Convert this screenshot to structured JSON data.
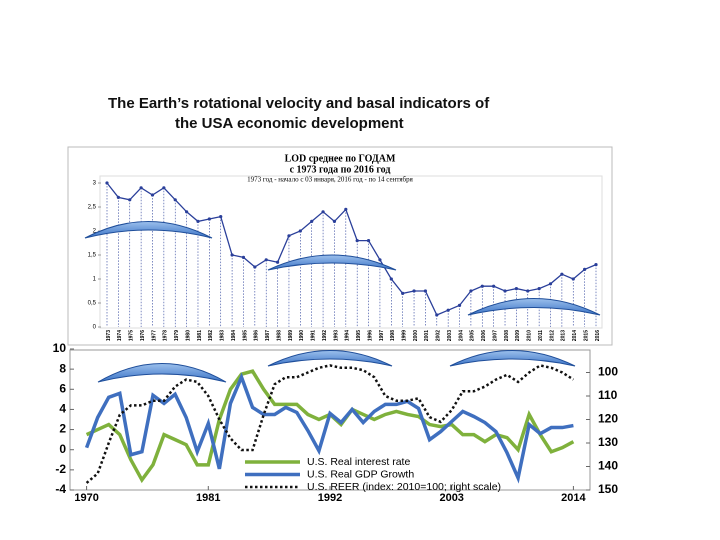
{
  "slide": {
    "title_lines": [
      "The Earth’s rotational velocity and basal indicators of",
      "the USA economic development"
    ]
  },
  "chart_data": [
    {
      "type": "line",
      "title": "LOD среднее  по ГОДАМ",
      "subtitle": "с 1973 года по 2016 год",
      "note": "1973 год - начало с 03 января, 2016 год - по 14 сентября",
      "categories": [
        "1973",
        "1974",
        "1975",
        "1976",
        "1977",
        "1978",
        "1979",
        "1980",
        "1981",
        "1982",
        "1983",
        "1984",
        "1985",
        "1986",
        "1987",
        "1988",
        "1989",
        "1990",
        "1991",
        "1992",
        "1993",
        "1994",
        "1995",
        "1996",
        "1997",
        "1998",
        "1999",
        "2000",
        "2001",
        "2002",
        "2003",
        "2004",
        "2005",
        "2006",
        "2007",
        "2008",
        "2009",
        "2010",
        "2011",
        "2012",
        "2013",
        "2014",
        "2015",
        "2016"
      ],
      "values": [
        3.0,
        2.7,
        2.65,
        2.9,
        2.75,
        2.9,
        2.65,
        2.4,
        2.2,
        2.25,
        2.3,
        1.5,
        1.45,
        1.25,
        1.4,
        1.35,
        1.9,
        2.0,
        2.2,
        2.4,
        2.2,
        2.45,
        1.8,
        1.8,
        1.4,
        1.0,
        0.7,
        0.75,
        0.75,
        0.25,
        0.35,
        0.45,
        0.75,
        0.85,
        0.85,
        0.75,
        0.8,
        0.75,
        0.8,
        0.9,
        1.1,
        1.0,
        1.2,
        1.3
      ],
      "color": "#2a3f9a",
      "ylim": [
        0,
        3
      ],
      "yticks": [
        0,
        {
          "value": 0.5,
          "label": "0,5"
        },
        1,
        {
          "value": 1.5,
          "label": "1,5"
        },
        2,
        {
          "value": 2.5,
          "label": "2,5"
        },
        3
      ]
    },
    {
      "type": "line",
      "x": [
        1970,
        1971,
        1972,
        1973,
        1974,
        1975,
        1976,
        1977,
        1978,
        1979,
        1980,
        1981,
        1982,
        1983,
        1984,
        1985,
        1986,
        1987,
        1988,
        1989,
        1990,
        1991,
        1992,
        1993,
        1994,
        1995,
        1996,
        1997,
        1998,
        1999,
        2000,
        2001,
        2002,
        2003,
        2004,
        2005,
        2006,
        2007,
        2008,
        2009,
        2010,
        2011,
        2012,
        2013,
        2014
      ],
      "series": [
        {
          "name": "U.S. Real interest rate",
          "color": "#7fb13c",
          "values": [
            1.5,
            2,
            2.5,
            1.5,
            -1,
            -3,
            -1.5,
            1.5,
            1,
            0.5,
            -1.5,
            -1.5,
            3,
            6,
            7.5,
            7.8,
            6,
            4.5,
            4.5,
            4.5,
            3.5,
            3,
            3.5,
            2.5,
            4,
            3.5,
            3,
            3.5,
            3.8,
            3.5,
            3.3,
            2.5,
            2.3,
            2.5,
            1.5,
            1.5,
            0.8,
            1.5,
            1.2,
            0,
            3.5,
            1.5,
            -0.2,
            0.2,
            0.8
          ]
        },
        {
          "name": "U.S. Real GDP Growth",
          "color": "#3f6fbf",
          "values": [
            0.2,
            3.2,
            5.2,
            5.6,
            -0.5,
            -0.2,
            5.4,
            4.6,
            5.5,
            3.2,
            -0.2,
            2.6,
            -1.9,
            4.6,
            7.2,
            4.2,
            3.5,
            3.5,
            4.2,
            3.7,
            1.9,
            -0.1,
            3.6,
            2.7,
            4,
            2.7,
            3.8,
            4.5,
            4.5,
            4.8,
            4.1,
            1,
            1.8,
            2.8,
            3.8,
            3.3,
            2.7,
            1.8,
            -0.3,
            -2.8,
            2.5,
            1.6,
            2.2,
            2.2,
            2.4
          ]
        },
        {
          "name": "U.S. REER (index: 2010=100; right scale)",
          "color": "#111111",
          "dashed": true,
          "axis": "y2",
          "values": [
            147,
            143,
            130,
            118,
            114,
            114,
            112,
            112,
            106,
            103,
            104,
            110,
            120,
            128,
            133,
            133,
            118,
            105,
            102,
            102,
            100,
            98,
            97,
            98,
            98,
            99,
            102,
            110,
            112,
            112,
            111,
            119,
            121,
            116,
            108,
            108,
            106,
            103,
            101,
            104,
            100,
            97,
            98,
            100,
            103
          ]
        }
      ],
      "xlim": [
        1968.5,
        2015.5
      ],
      "xticks": [
        1970,
        1981,
        1992,
        2003,
        2014
      ],
      "ylim": [
        -4,
        10
      ],
      "yticks": [
        -4,
        -2,
        0,
        2,
        4,
        6,
        8,
        10
      ],
      "y2lim": [
        90,
        150
      ],
      "y2_inverted": true,
      "y2ticks": [
        100,
        110,
        120,
        130,
        140,
        150
      ],
      "legend": "lower right"
    }
  ]
}
